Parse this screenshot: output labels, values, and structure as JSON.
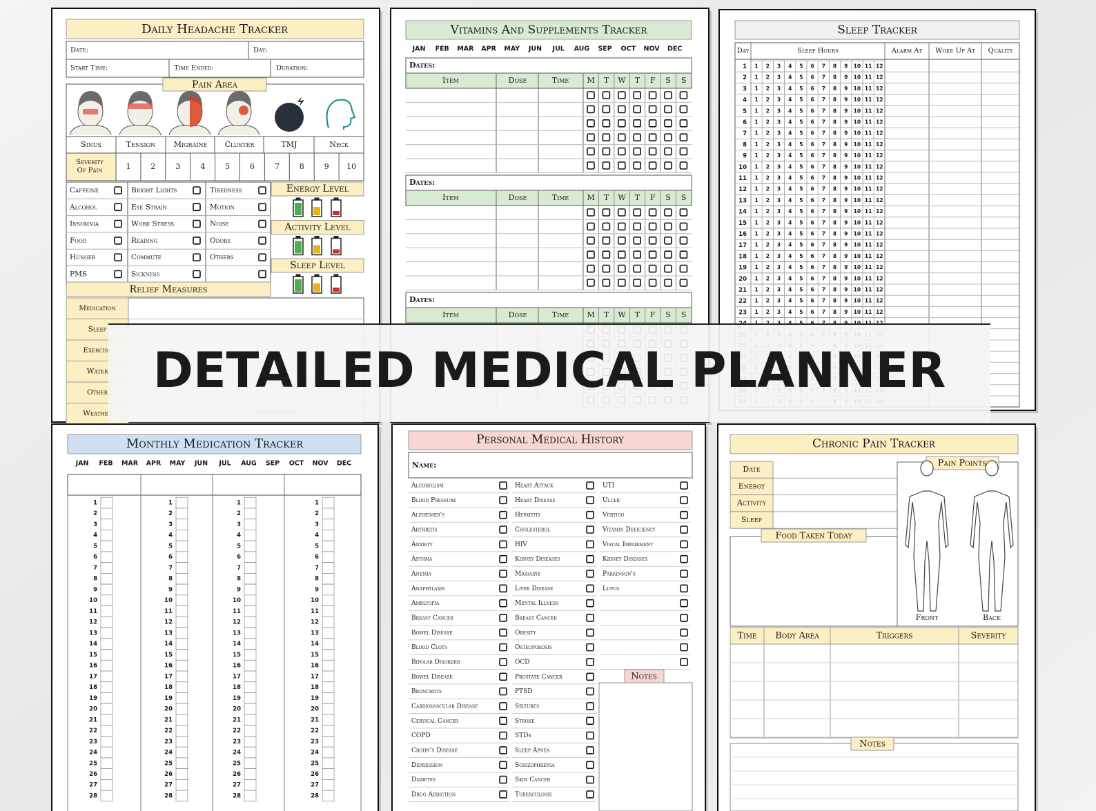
{
  "headache": {
    "title": "Daily Headache Tracker",
    "fields": [
      "Date:",
      "Day:",
      "Start Time:",
      "Time Ended:",
      "Duration:"
    ],
    "pain_area": "Pain Area",
    "types": [
      "Sinus",
      "Tension",
      "Migraine",
      "Cluster",
      "TMJ",
      "Neck"
    ],
    "severity_label": "Severity Of Pain",
    "severity": [
      1,
      2,
      3,
      4,
      5,
      6,
      7,
      8,
      9,
      10
    ],
    "triggers": [
      [
        "Caffeine",
        "Alcohol",
        "Insomnia",
        "Food",
        "Hunger",
        "PMS"
      ],
      [
        "Bright Lights",
        "Eye Strain",
        "Work Stress",
        "Reading",
        "Commute",
        "Sickness"
      ],
      [
        "Tiredness",
        "Motion",
        "Noise",
        "Odors",
        "Others"
      ]
    ],
    "levels": [
      "Energy Level",
      "Activity Level",
      "Sleep Level"
    ],
    "relief": "Relief Measures",
    "relief_items": [
      "Medication",
      "Sleep",
      "Exercise",
      "Water",
      "Other",
      "Weather"
    ],
    "temperature": "Temperature"
  },
  "vitamins": {
    "title": "Vitamins And Supplements Tracker",
    "months": [
      "JAN",
      "FEB",
      "MAR",
      "APR",
      "MAY",
      "JUN",
      "JUL",
      "AUG",
      "SEP",
      "OCT",
      "NOV",
      "DEC"
    ],
    "dates_label": "Dates:",
    "columns": [
      "Item",
      "Dose",
      "Time"
    ],
    "days": [
      "M",
      "T",
      "W",
      "T",
      "F",
      "S",
      "S"
    ]
  },
  "sleep": {
    "title": "Sleep Tracker",
    "columns": [
      "Day",
      "Sleep Hours",
      "Alarm At",
      "Woke Up At",
      "Quality"
    ],
    "days": [
      1,
      2,
      3,
      4,
      5,
      6,
      7,
      8,
      9,
      10,
      11,
      12,
      13,
      14,
      15,
      16,
      17,
      18,
      19,
      20,
      21,
      22,
      23,
      24,
      25,
      26,
      27,
      28,
      29,
      30,
      31
    ],
    "hours": [
      1,
      2,
      3,
      4,
      5,
      6,
      7,
      8,
      9,
      10,
      11,
      12
    ]
  },
  "banner": "DETAILED MEDICAL PLANNER",
  "medication": {
    "title": "Monthly Medication Tracker",
    "months": [
      "JAN",
      "FEB",
      "MAR",
      "APR",
      "MAY",
      "JUN",
      "JUL",
      "AUG",
      "SEP",
      "OCT",
      "NOV",
      "DEC"
    ],
    "days": [
      1,
      2,
      3,
      4,
      5,
      6,
      7,
      8,
      9,
      10,
      11,
      12,
      13,
      14,
      15,
      16,
      17,
      18,
      19,
      20,
      21,
      22,
      23,
      24,
      25,
      26,
      27,
      28
    ]
  },
  "history": {
    "title": "Personal Medical History",
    "name_label": "Name:",
    "conditions": [
      [
        "Alcoholism",
        "Blood Pressure",
        "Alzheimer's",
        "Arthritis",
        "Anxiety",
        "Asthma",
        "Anemia",
        "Anaphylaxis",
        "Amblyopia",
        "Breast Cancer",
        "Bowel Disease",
        "Blood Clots",
        "Bipolar Disorder",
        "Bowel Disease",
        "Bronchitis",
        "Cardiovascular Disease",
        "Cervical Cancer",
        "COPD",
        "Crohn's Disease",
        "Depression",
        "Diabetes",
        "Drug Addiction"
      ],
      [
        "Heart Attack",
        "Heart Disease",
        "Hepatitis",
        "Cholesterol",
        "HIV",
        "Kidney Diseases",
        "Migraine",
        "Liver Disease",
        "Mental Illness",
        "Breast Cancer",
        "Obesity",
        "Osteoporosis",
        "OCD",
        "Prostate Cancer",
        "PTSD",
        "Seizures",
        "Stroke",
        "STDs",
        "Sleep Apnea",
        "Schizophrenia",
        "Skin Cancer",
        "Tuberculosis"
      ],
      [
        "UTI",
        "Ulcer",
        "Vertigo",
        "Vitamin Deficiency",
        "Visual Impairment",
        "Kidney Diseases",
        "Parkinson's",
        "Lupus"
      ]
    ],
    "notes": "Notes"
  },
  "chronic": {
    "title": "Chronic Pain Tracker",
    "fields": [
      "Date",
      "Energy",
      "Activity",
      "Sleep"
    ],
    "pain_points": "Pain Points",
    "food": "Food Taken Today",
    "front": "Front",
    "back": "Back",
    "columns": [
      "Time",
      "Body Area",
      "Triggers",
      "Severity"
    ],
    "notes": "Notes"
  }
}
